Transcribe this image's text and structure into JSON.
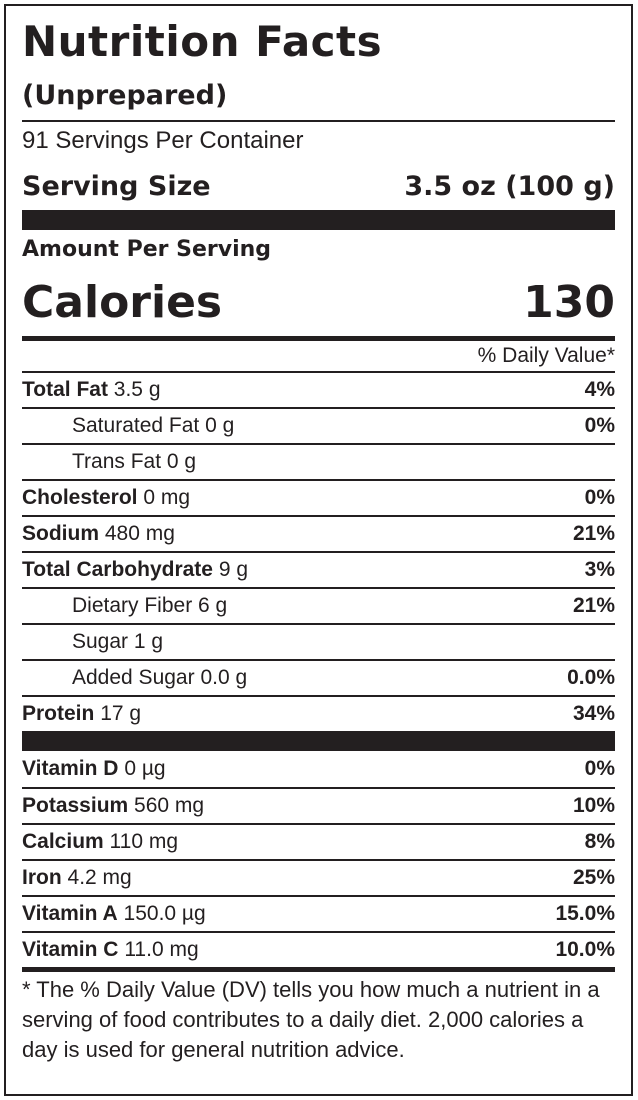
{
  "header": {
    "title": "Nutrition Facts",
    "subtitle": "(Unprepared)",
    "servings_per_container": "91 Servings Per Container",
    "serving_size_label": "Serving Size",
    "serving_size_value": "3.5 oz (100 g)"
  },
  "calories": {
    "amount_per_serving": "Amount Per Serving",
    "label": "Calories",
    "value": "130"
  },
  "dv_header": "% Daily Value*",
  "nutrients": [
    {
      "name": "Total Fat",
      "amount": "3.5 g",
      "dv": "4%"
    },
    {
      "name": "Saturated Fat",
      "amount": "0 g",
      "dv": "0%"
    },
    {
      "name": "Trans Fat",
      "amount": "0 g",
      "dv": ""
    },
    {
      "name": "Cholesterol",
      "amount": "0 mg",
      "dv": "0%"
    },
    {
      "name": "Sodium",
      "amount": "480 mg",
      "dv": "21%"
    },
    {
      "name": "Total Carbohydrate",
      "amount": "9 g",
      "dv": "3%"
    },
    {
      "name": "Dietary Fiber",
      "amount": "6 g",
      "dv": "21%"
    },
    {
      "name": "Sugar",
      "amount": "1 g",
      "dv": ""
    },
    {
      "name": "Added Sugar",
      "amount": "0.0 g",
      "dv": "0.0%"
    },
    {
      "name": "Protein",
      "amount": "17 g",
      "dv": "34%"
    }
  ],
  "vitamins": [
    {
      "name": "Vitamin D",
      "amount": "0 µg",
      "dv": "0%"
    },
    {
      "name": "Potassium",
      "amount": "560 mg",
      "dv": "10%"
    },
    {
      "name": "Calcium",
      "amount": "110 mg",
      "dv": "8%"
    },
    {
      "name": "Iron",
      "amount": "4.2 mg",
      "dv": "25%"
    },
    {
      "name": "Vitamin A",
      "amount": "150.0 µg",
      "dv": "15.0%"
    },
    {
      "name": "Vitamin C",
      "amount": "11.0 mg",
      "dv": "10.0%"
    }
  ],
  "footnote": "* The % Daily Value (DV) tells you how much a nutrient in a serving of food contributes to a daily diet. 2,000 calories a day is used for general nutrition advice."
}
